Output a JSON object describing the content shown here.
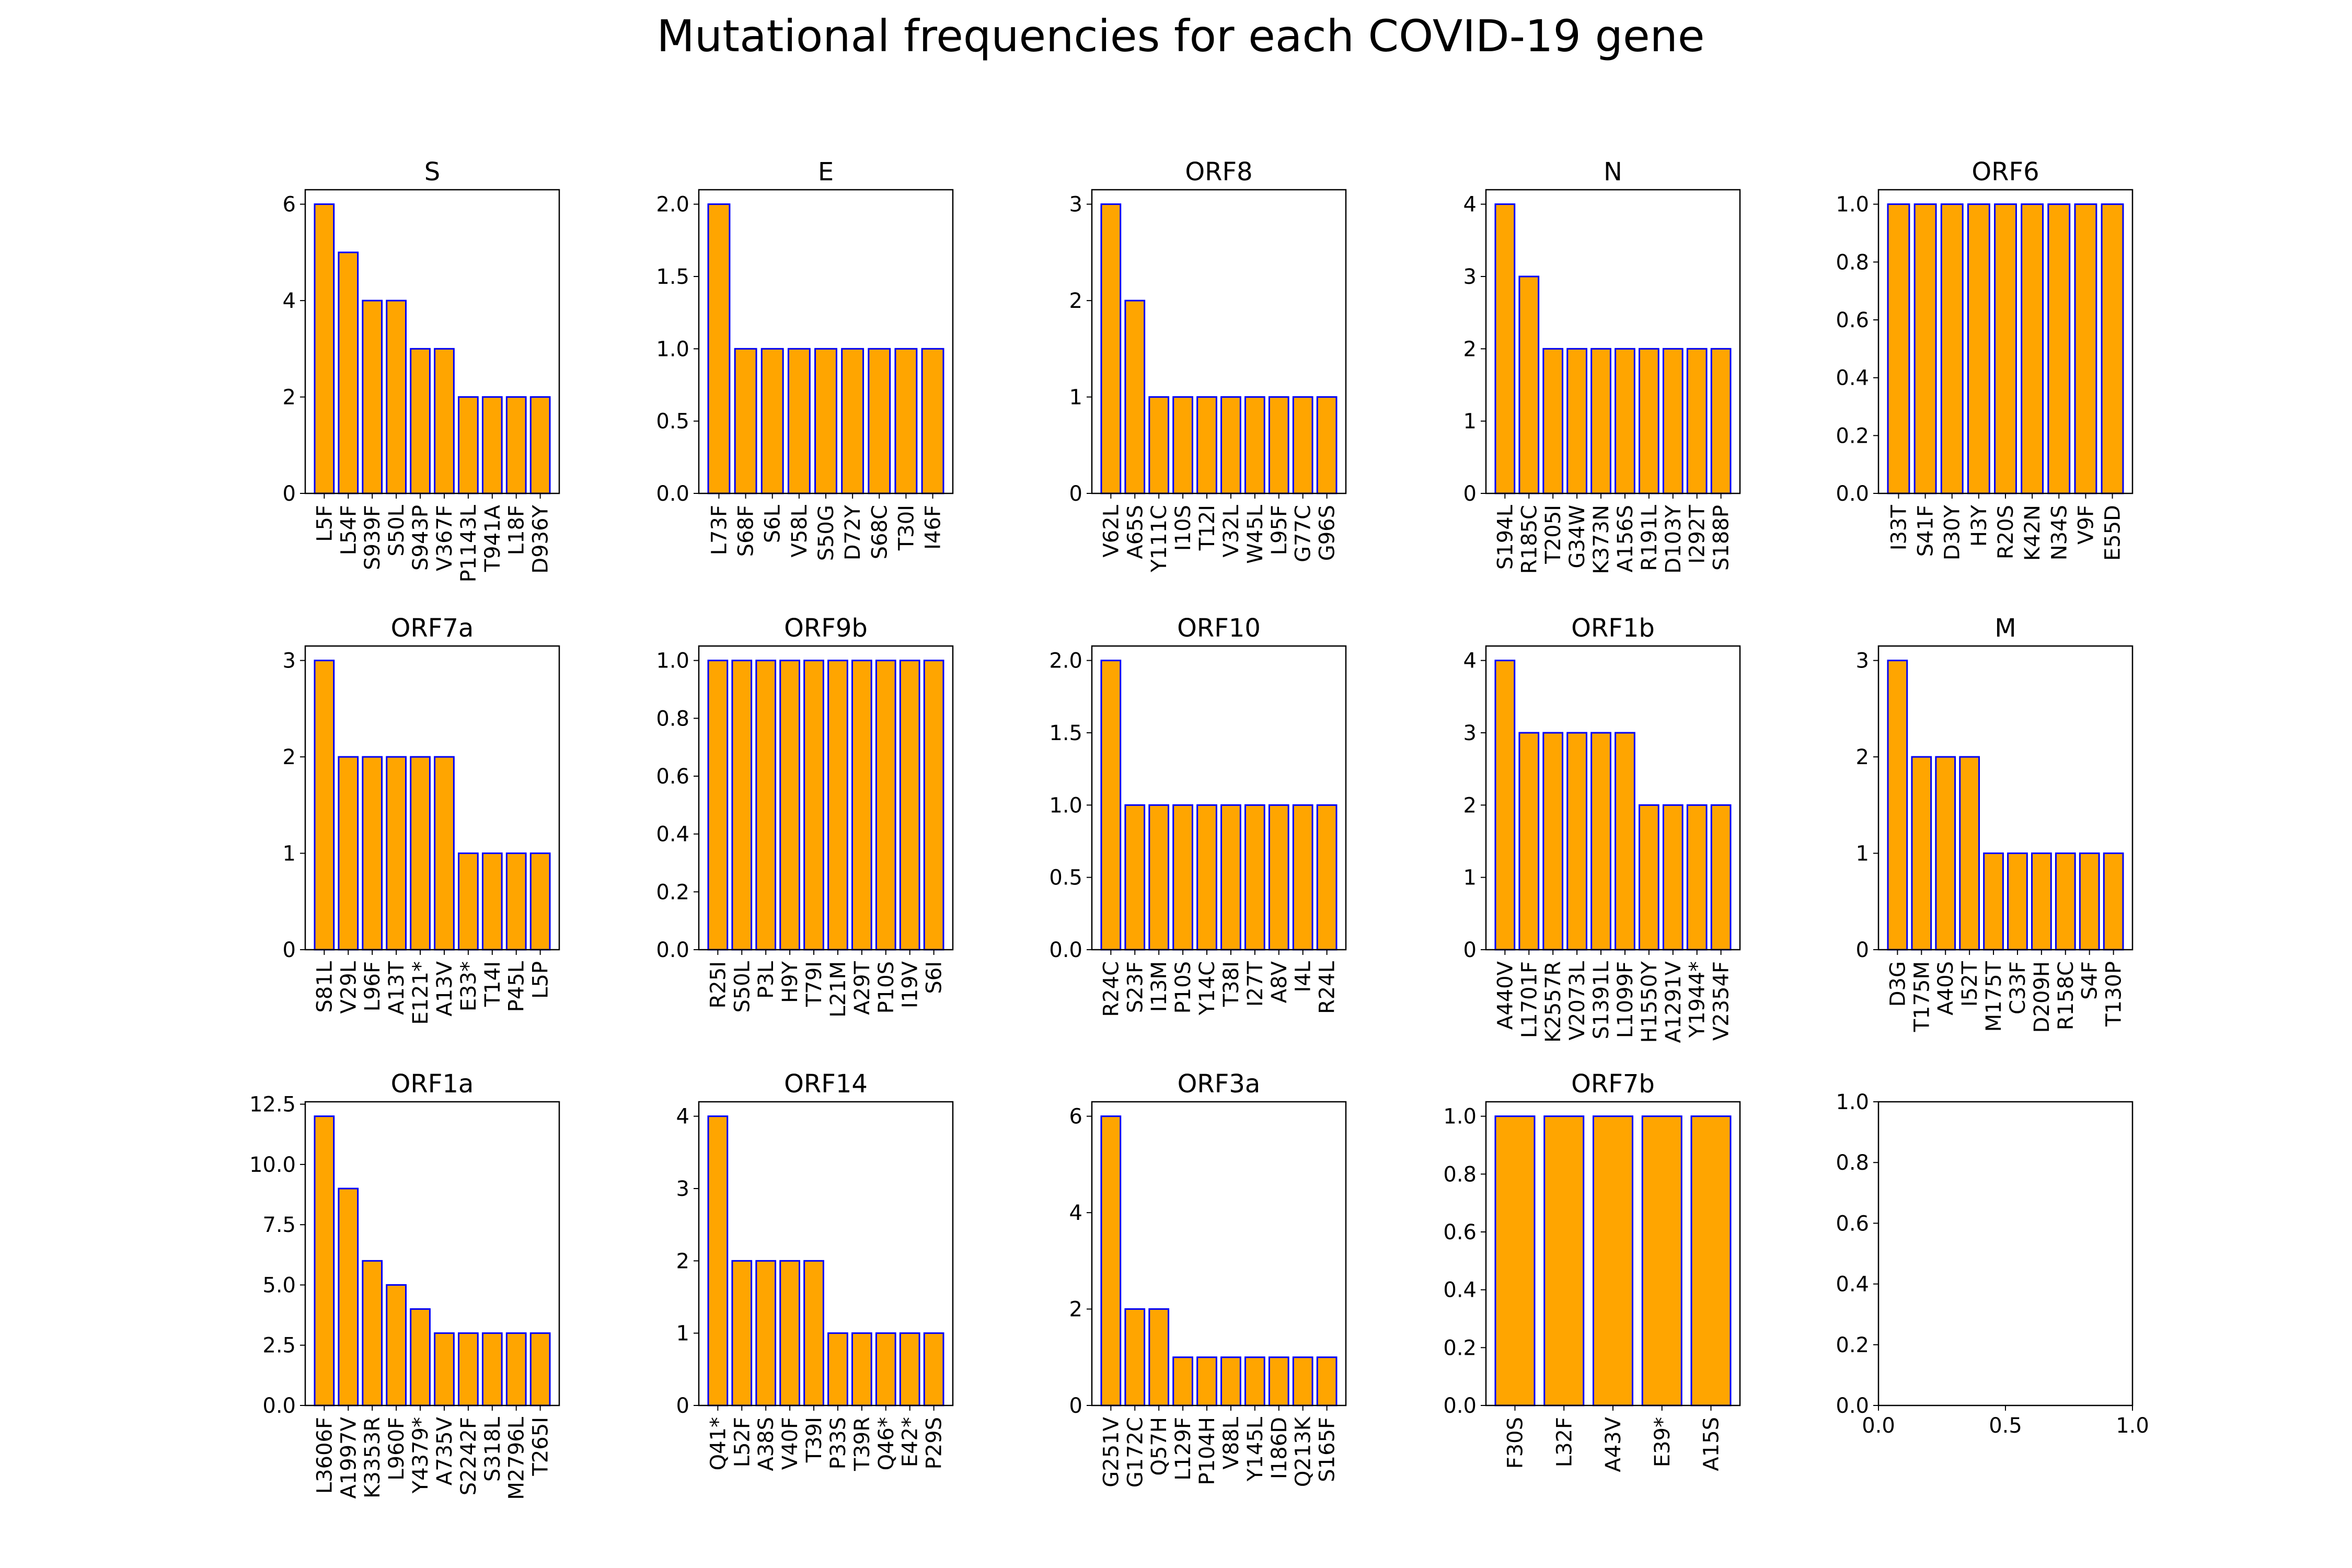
{
  "figure": {
    "title": "Mutational frequencies for each COVID-19 gene",
    "bar_color": "#ffa500",
    "bar_edge_color": "#0000ff"
  },
  "chart_data": [
    {
      "type": "bar",
      "title": "S",
      "categories": [
        "L5F",
        "L54F",
        "S939F",
        "S50L",
        "S943P",
        "V367F",
        "P1143L",
        "T941A",
        "L18F",
        "D936Y"
      ],
      "values": [
        6,
        5,
        4,
        4,
        3,
        3,
        2,
        2,
        2,
        2
      ],
      "ylim": [
        0,
        6.3
      ],
      "yticks": [
        "0",
        "2",
        "4",
        "6"
      ]
    },
    {
      "type": "bar",
      "title": "E",
      "categories": [
        "L73F",
        "S68F",
        "S6L",
        "V58L",
        "S50G",
        "D72Y",
        "S68C",
        "T30I",
        "I46F"
      ],
      "values": [
        2,
        1,
        1,
        1,
        1,
        1,
        1,
        1,
        1
      ],
      "ylim": [
        0,
        2.1
      ],
      "yticks": [
        "0.0",
        "0.5",
        "1.0",
        "1.5",
        "2.0"
      ]
    },
    {
      "type": "bar",
      "title": "ORF8",
      "categories": [
        "V62L",
        "A65S",
        "Y111C",
        "I10S",
        "T12I",
        "V32L",
        "W45L",
        "L95F",
        "G77C",
        "G96S"
      ],
      "values": [
        3,
        2,
        1,
        1,
        1,
        1,
        1,
        1,
        1,
        1
      ],
      "ylim": [
        0,
        3.15
      ],
      "yticks": [
        "0",
        "1",
        "2",
        "3"
      ]
    },
    {
      "type": "bar",
      "title": "N",
      "categories": [
        "S194L",
        "R185C",
        "T205I",
        "G34W",
        "K373N",
        "A156S",
        "R191L",
        "D103Y",
        "I292T",
        "S188P"
      ],
      "values": [
        4,
        3,
        2,
        2,
        2,
        2,
        2,
        2,
        2,
        2
      ],
      "ylim": [
        0,
        4.2
      ],
      "yticks": [
        "0",
        "1",
        "2",
        "3",
        "4"
      ]
    },
    {
      "type": "bar",
      "title": "ORF6",
      "categories": [
        "I33T",
        "S41F",
        "D30Y",
        "H3Y",
        "R20S",
        "K42N",
        "N34S",
        "V9F",
        "E55D"
      ],
      "values": [
        1,
        1,
        1,
        1,
        1,
        1,
        1,
        1,
        1
      ],
      "ylim": [
        0,
        1.05
      ],
      "yticks": [
        "0.0",
        "0.2",
        "0.4",
        "0.6",
        "0.8",
        "1.0"
      ]
    },
    {
      "type": "bar",
      "title": "ORF7a",
      "categories": [
        "S81L",
        "V29L",
        "L96F",
        "A13T",
        "E121*",
        "A13V",
        "E33*",
        "T14I",
        "P45L",
        "L5P"
      ],
      "values": [
        3,
        2,
        2,
        2,
        2,
        2,
        1,
        1,
        1,
        1
      ],
      "ylim": [
        0,
        3.15
      ],
      "yticks": [
        "0",
        "1",
        "2",
        "3"
      ]
    },
    {
      "type": "bar",
      "title": "ORF9b",
      "categories": [
        "R25I",
        "S50L",
        "P3L",
        "H9Y",
        "T79I",
        "L21M",
        "A29T",
        "P10S",
        "I19V",
        "S6I"
      ],
      "values": [
        1,
        1,
        1,
        1,
        1,
        1,
        1,
        1,
        1,
        1
      ],
      "ylim": [
        0,
        1.05
      ],
      "yticks": [
        "0.0",
        "0.2",
        "0.4",
        "0.6",
        "0.8",
        "1.0"
      ]
    },
    {
      "type": "bar",
      "title": "ORF10",
      "categories": [
        "R24C",
        "S23F",
        "I13M",
        "P10S",
        "Y14C",
        "T38I",
        "I27T",
        "A8V",
        "I4L",
        "R24L"
      ],
      "values": [
        2,
        1,
        1,
        1,
        1,
        1,
        1,
        1,
        1,
        1
      ],
      "ylim": [
        0,
        2.1
      ],
      "yticks": [
        "0.0",
        "0.5",
        "1.0",
        "1.5",
        "2.0"
      ]
    },
    {
      "type": "bar",
      "title": "ORF1b",
      "categories": [
        "A440V",
        "L1701F",
        "K2557R",
        "V2073L",
        "S1391L",
        "L1099F",
        "H1550Y",
        "A1291V",
        "Y1944*",
        "V2354F"
      ],
      "values": [
        4,
        3,
        3,
        3,
        3,
        3,
        2,
        2,
        2,
        2
      ],
      "ylim": [
        0,
        4.2
      ],
      "yticks": [
        "0",
        "1",
        "2",
        "3",
        "4"
      ]
    },
    {
      "type": "bar",
      "title": "M",
      "categories": [
        "D3G",
        "T175M",
        "A40S",
        "I52T",
        "M175T",
        "C33F",
        "D209H",
        "R158C",
        "S4F",
        "T130P"
      ],
      "values": [
        3,
        2,
        2,
        2,
        1,
        1,
        1,
        1,
        1,
        1
      ],
      "ylim": [
        0,
        3.15
      ],
      "yticks": [
        "0",
        "1",
        "2",
        "3"
      ]
    },
    {
      "type": "bar",
      "title": "ORF1a",
      "categories": [
        "L3606F",
        "A1997V",
        "K3353R",
        "L960F",
        "Y4379*",
        "A735V",
        "S2242F",
        "S318L",
        "M2796L",
        "T265I"
      ],
      "values": [
        12,
        9,
        6,
        5,
        4,
        3,
        3,
        3,
        3,
        3
      ],
      "ylim": [
        0,
        12.6
      ],
      "yticks": [
        "0.0",
        "2.5",
        "5.0",
        "7.5",
        "10.0",
        "12.5"
      ]
    },
    {
      "type": "bar",
      "title": "ORF14",
      "categories": [
        "Q41*",
        "L52F",
        "A38S",
        "V40F",
        "T39I",
        "P33S",
        "T39R",
        "Q46*",
        "E42*",
        "P29S"
      ],
      "values": [
        4,
        2,
        2,
        2,
        2,
        1,
        1,
        1,
        1,
        1
      ],
      "ylim": [
        0,
        4.2
      ],
      "yticks": [
        "0",
        "1",
        "2",
        "3",
        "4"
      ]
    },
    {
      "type": "bar",
      "title": "ORF3a",
      "categories": [
        "G251V",
        "G172C",
        "Q57H",
        "L129F",
        "P104H",
        "V88L",
        "Y145L",
        "I186D",
        "Q213K",
        "S165F"
      ],
      "values": [
        6,
        2,
        2,
        1,
        1,
        1,
        1,
        1,
        1,
        1
      ],
      "ylim": [
        0,
        6.3
      ],
      "yticks": [
        "0",
        "2",
        "4",
        "6"
      ]
    },
    {
      "type": "bar",
      "title": "ORF7b",
      "categories": [
        "F30S",
        "L32F",
        "A43V",
        "E39*",
        "A15S"
      ],
      "values": [
        1,
        1,
        1,
        1,
        1
      ],
      "ylim": [
        0,
        1.05
      ],
      "yticks": [
        "0.0",
        "0.2",
        "0.4",
        "0.6",
        "0.8",
        "1.0"
      ]
    },
    {
      "type": "bar",
      "title": "",
      "categories": [],
      "values": [],
      "xlim": [
        0,
        1
      ],
      "ylim": [
        0,
        1
      ],
      "xticks": [
        "0.0",
        "0.5",
        "1.0"
      ],
      "yticks": [
        "0.0",
        "0.2",
        "0.4",
        "0.6",
        "0.8",
        "1.0"
      ]
    }
  ]
}
